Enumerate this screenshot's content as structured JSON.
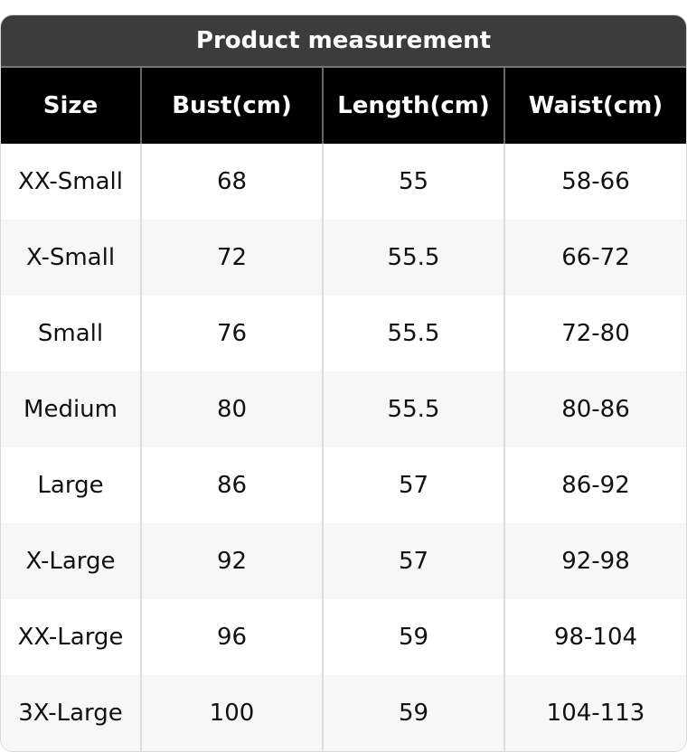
{
  "title": "Product measurement",
  "headers": [
    "Size",
    "Bust(cm)",
    "Length(cm)",
    "Waist(cm)"
  ],
  "rows": [
    [
      "XX-Small",
      "68",
      "55",
      "58-66"
    ],
    [
      "X-Small",
      "72",
      "55.5",
      "66-72"
    ],
    [
      "Small",
      "76",
      "55.5",
      "72-80"
    ],
    [
      "Medium",
      "80",
      "55.5",
      "80-86"
    ],
    [
      "Large",
      "86",
      "57",
      "86-92"
    ],
    [
      "X-Large",
      "92",
      "57",
      "92-98"
    ],
    [
      "XX-Large",
      "96",
      "59",
      "98-104"
    ],
    [
      "3X-Large",
      "100",
      "59",
      "104-113"
    ]
  ]
}
